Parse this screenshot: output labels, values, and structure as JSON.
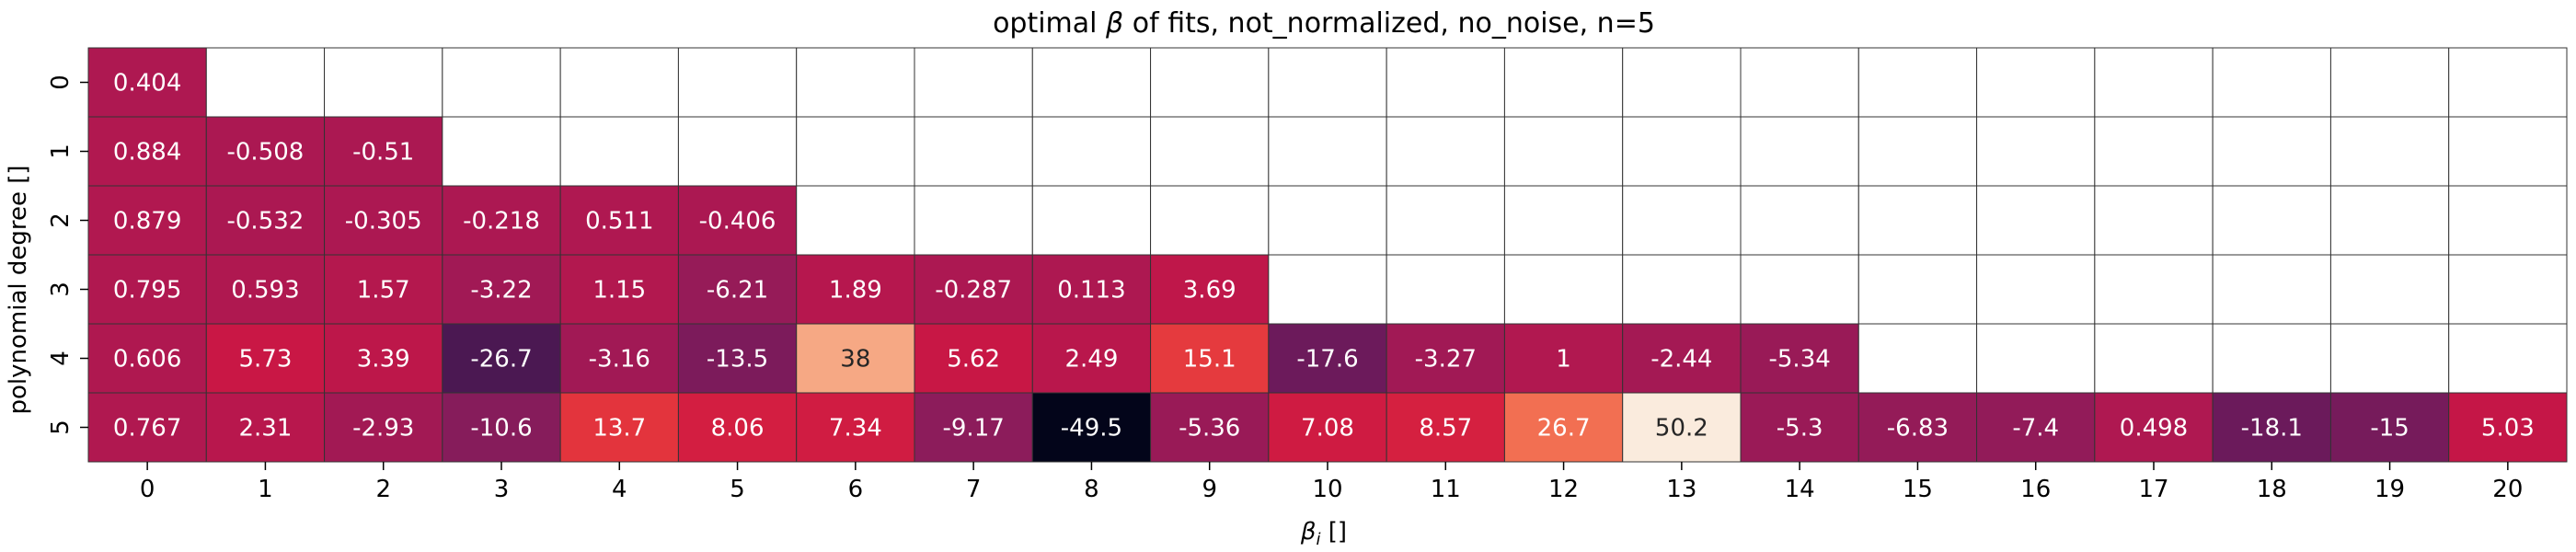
{
  "chart_data": {
    "type": "heatmap",
    "title_prefix": "optimal ",
    "title_symbol": "β",
    "title_suffix": " of fits, not_normalized, no_noise, n=5",
    "ylabel": "polynomial degree []",
    "xlabel_symbol": "β",
    "xlabel_sub": "i",
    "xlabel_suffix": " []",
    "x_categories": [
      "0",
      "1",
      "2",
      "3",
      "4",
      "5",
      "6",
      "7",
      "8",
      "9",
      "10",
      "11",
      "12",
      "13",
      "14",
      "15",
      "16",
      "17",
      "18",
      "19",
      "20"
    ],
    "y_categories": [
      "0",
      "1",
      "2",
      "3",
      "4",
      "5"
    ],
    "color_range": [
      -49.5,
      50.2
    ],
    "colormap": "rocket",
    "values": [
      [
        0.404
      ],
      [
        0.884,
        -0.508,
        -0.51
      ],
      [
        0.879,
        -0.532,
        -0.305,
        -0.218,
        0.511,
        -0.406
      ],
      [
        0.795,
        0.593,
        1.57,
        -3.22,
        1.15,
        -6.21,
        1.89,
        -0.287,
        0.113,
        3.69
      ],
      [
        0.606,
        5.73,
        3.39,
        -26.7,
        -3.16,
        -13.5,
        38,
        5.62,
        2.49,
        15.1,
        -17.6,
        -3.27,
        1,
        -2.44,
        -5.34
      ],
      [
        0.767,
        2.31,
        -2.93,
        -10.6,
        13.7,
        8.06,
        7.34,
        -9.17,
        -49.5,
        -5.36,
        7.08,
        8.57,
        26.7,
        50.2,
        -5.3,
        -6.83,
        -7.4,
        0.498,
        -18.1,
        -15,
        5.03
      ]
    ]
  }
}
